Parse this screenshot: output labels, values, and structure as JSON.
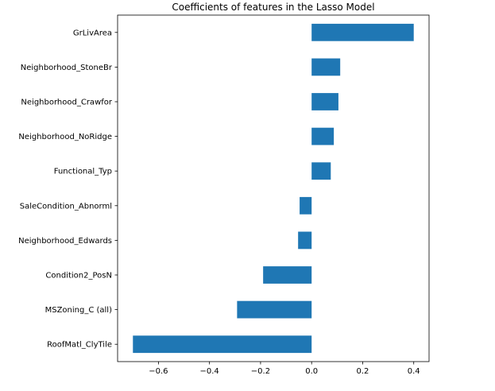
{
  "chart_data": {
    "type": "bar",
    "orientation": "horizontal",
    "title": "Coefficients of features in the Lasso Model",
    "xlabel": "",
    "ylabel": "",
    "categories": [
      "GrLivArea",
      "Neighborhood_StoneBr",
      "Neighborhood_Crawfor",
      "Neighborhood_NoRidge",
      "Functional_Typ",
      "SaleCondition_Abnorml",
      "Neighborhood_Edwards",
      "Condition2_PosN",
      "MSZoning_C (all)",
      "RoofMatl_ClyTile"
    ],
    "values": [
      0.4,
      0.112,
      0.105,
      0.087,
      0.075,
      -0.047,
      -0.053,
      -0.19,
      -0.292,
      -0.7
    ],
    "xlim": [
      -0.76,
      0.46
    ],
    "xticks": [
      -0.6,
      -0.4,
      -0.2,
      0.0,
      0.2,
      0.4
    ],
    "xtick_labels": [
      "−0.6",
      "−0.4",
      "−0.2",
      "0.0",
      "0.2",
      "0.4"
    ],
    "bar_color": "#1f77b4",
    "grid": false,
    "legend": "none"
  }
}
